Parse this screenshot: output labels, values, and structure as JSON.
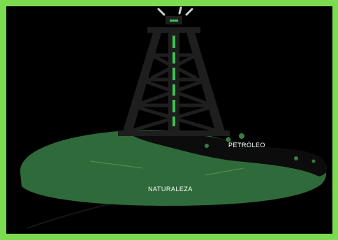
{
  "scene": {
    "frame_color": "#7ddb4f",
    "background_color": "#000000",
    "island_color": "#2f6a3a",
    "oil_color": "#111111",
    "tower_color": "#1e1e1e",
    "accent_color": "#3fbf55",
    "icons": [
      "oil-derrick-icon",
      "lamp-icon"
    ]
  },
  "labels": {
    "oil": "PETRÓLEO",
    "nature": "NATURALEZA"
  }
}
